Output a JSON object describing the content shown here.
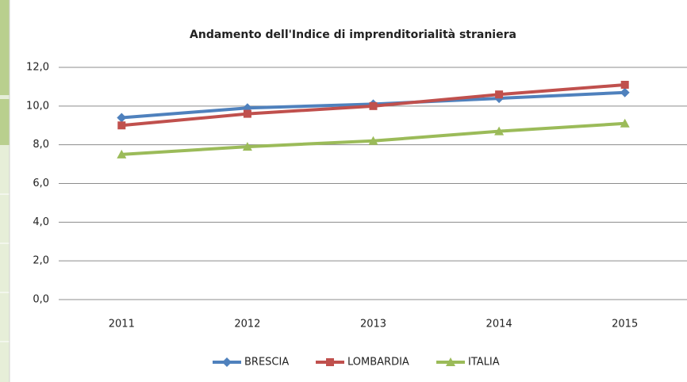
{
  "chart_data": {
    "type": "line",
    "title": "Andamento dell'Indice di imprenditorialità straniera",
    "categories": [
      "2011",
      "2012",
      "2013",
      "2014",
      "2015"
    ],
    "series": [
      {
        "name": "BRESCIA",
        "color": "#4f81bd",
        "marker": "diamond",
        "values": [
          9.4,
          9.9,
          10.1,
          10.4,
          10.7
        ]
      },
      {
        "name": "LOMBARDIA",
        "color": "#c0504d",
        "marker": "square",
        "values": [
          9.0,
          9.6,
          10.0,
          10.6,
          11.1
        ]
      },
      {
        "name": "ITALIA",
        "color": "#9bbb59",
        "marker": "triangle",
        "values": [
          7.5,
          7.9,
          8.2,
          8.7,
          9.1
        ]
      }
    ],
    "ylim": [
      0,
      12
    ],
    "yticks": [
      {
        "value": 0,
        "label": "0,0"
      },
      {
        "value": 2,
        "label": "2,0"
      },
      {
        "value": 4,
        "label": "4,0"
      },
      {
        "value": 6,
        "label": "6,0"
      },
      {
        "value": 8,
        "label": "8,0"
      },
      {
        "value": 10,
        "label": "10,0"
      },
      {
        "value": 12,
        "label": "12,0"
      }
    ],
    "grid": true,
    "legend": "bottom"
  }
}
